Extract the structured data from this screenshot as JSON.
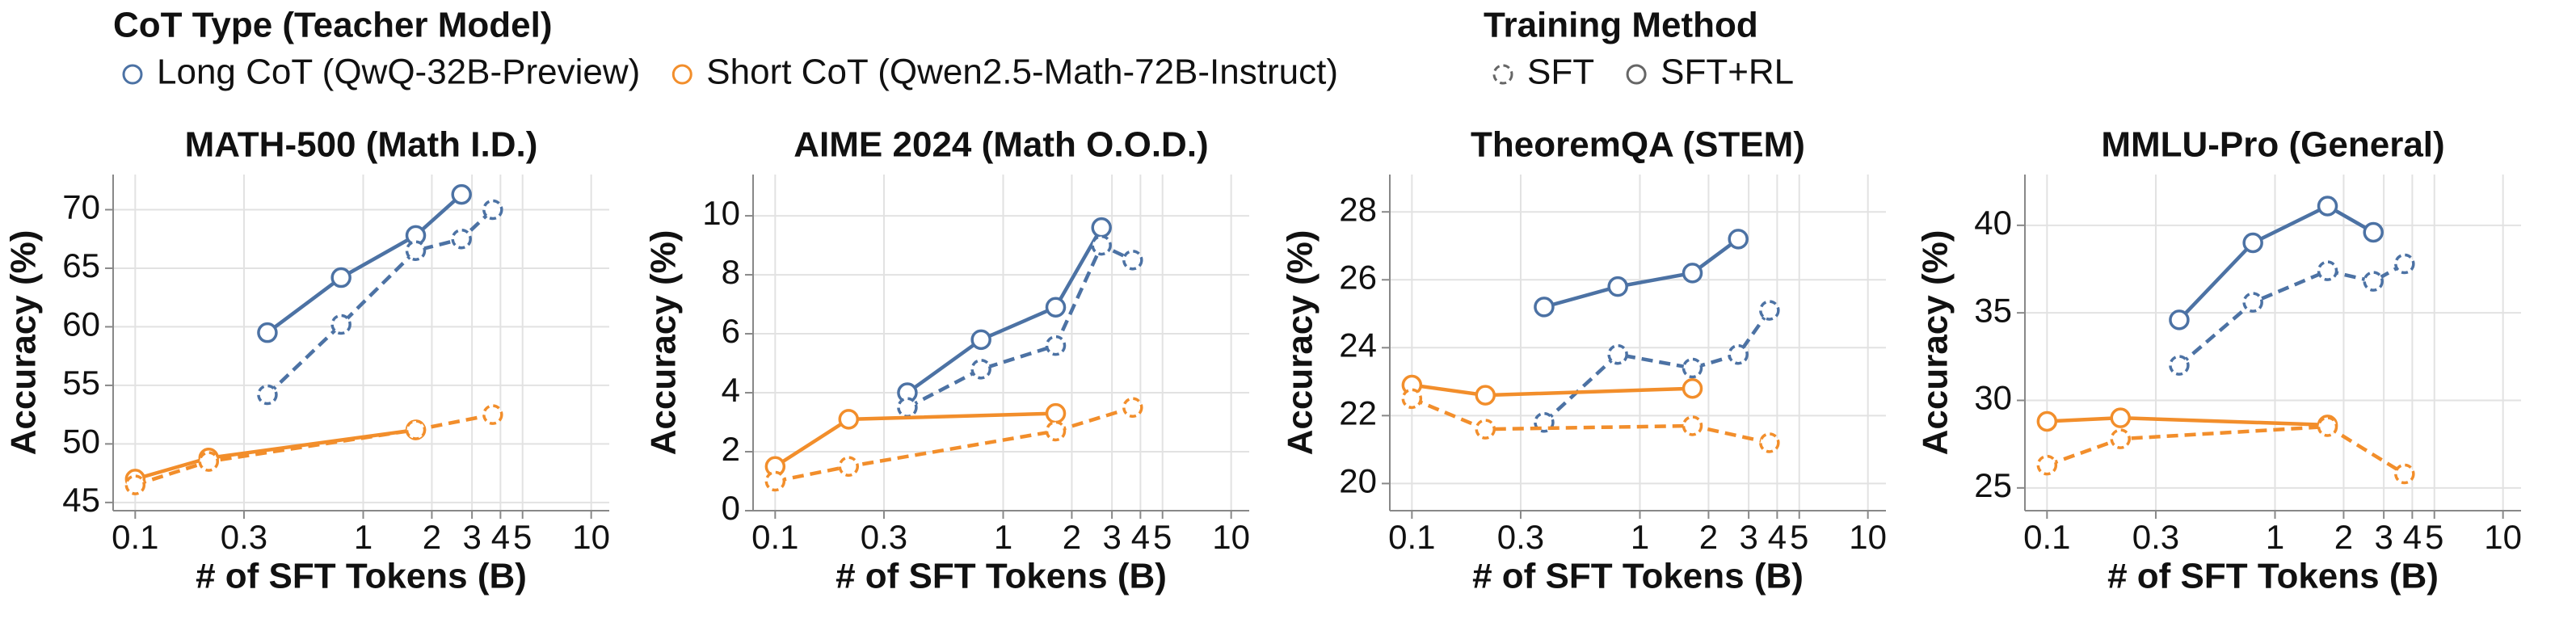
{
  "legend": {
    "groups": [
      {
        "title": "CoT Type (Teacher Model)",
        "items": [
          {
            "label": "Long CoT (QwQ-32B-Preview)",
            "color": "#4c72a4"
          },
          {
            "label": "Short CoT (Qwen2.5-Math-72B-Instruct)",
            "color": "#f28e2b"
          }
        ]
      },
      {
        "title": "Training Method",
        "items": [
          {
            "label": "SFT",
            "dash": true
          },
          {
            "label": "SFT+RL",
            "dash": false
          }
        ]
      }
    ]
  },
  "chart_data": [
    {
      "type": "line",
      "title": "MATH-500 (Math I.D.)",
      "xlabel": "# of SFT Tokens (B)",
      "ylabel": "Accuracy (%)",
      "log_x": true,
      "grid": true,
      "xlim": [
        0.08,
        12
      ],
      "xticks": [
        0.1,
        0.3,
        1,
        2,
        3,
        4,
        5,
        10
      ],
      "ylim": [
        44.3,
        73
      ],
      "yticks": [
        45,
        50,
        55,
        60,
        65,
        70
      ],
      "series": [
        {
          "cot": "Long CoT (QwQ-32B-Preview)",
          "method": "SFT+RL",
          "x": [
            0.38,
            0.8,
            1.7,
            2.7
          ],
          "values": [
            59.5,
            64.2,
            67.8,
            71.3
          ]
        },
        {
          "cot": "Long CoT (QwQ-32B-Preview)",
          "method": "SFT",
          "x": [
            0.38,
            0.8,
            1.7,
            2.7,
            3.7
          ],
          "values": [
            54.2,
            60.2,
            66.5,
            67.5,
            70.0
          ]
        },
        {
          "cot": "Short CoT (Qwen2.5-Math-72B-Instruct)",
          "method": "SFT+RL",
          "x": [
            0.1,
            0.21,
            1.7
          ],
          "values": [
            47.0,
            48.8,
            51.2
          ]
        },
        {
          "cot": "Short CoT (Qwen2.5-Math-72B-Instruct)",
          "method": "SFT",
          "x": [
            0.1,
            0.21,
            1.7,
            3.7
          ],
          "values": [
            46.5,
            48.5,
            51.2,
            52.5
          ]
        }
      ]
    },
    {
      "type": "line",
      "title": "AIME 2024 (Math O.O.D.)",
      "xlabel": "# of SFT Tokens (B)",
      "ylabel": "Accuracy (%)",
      "log_x": true,
      "grid": true,
      "xlim": [
        0.08,
        12
      ],
      "xticks": [
        0.1,
        0.3,
        1,
        2,
        3,
        4,
        5,
        10
      ],
      "ylim": [
        0,
        11.4
      ],
      "yticks": [
        0,
        2,
        4,
        6,
        8,
        10
      ],
      "series": [
        {
          "cot": "Long CoT (QwQ-32B-Preview)",
          "method": "SFT+RL",
          "x": [
            0.38,
            0.8,
            1.7,
            2.7
          ],
          "values": [
            4.0,
            5.8,
            6.9,
            9.6
          ]
        },
        {
          "cot": "Long CoT (QwQ-32B-Preview)",
          "method": "SFT",
          "x": [
            0.38,
            0.8,
            1.7,
            2.7,
            3.7
          ],
          "values": [
            3.5,
            4.8,
            5.6,
            9.0,
            8.5
          ]
        },
        {
          "cot": "Short CoT (Qwen2.5-Math-72B-Instruct)",
          "method": "SFT+RL",
          "x": [
            0.1,
            0.21,
            1.7
          ],
          "values": [
            1.5,
            3.1,
            3.3
          ]
        },
        {
          "cot": "Short CoT (Qwen2.5-Math-72B-Instruct)",
          "method": "SFT",
          "x": [
            0.1,
            0.21,
            1.7,
            3.7
          ],
          "values": [
            1.0,
            1.5,
            2.7,
            3.5
          ]
        }
      ]
    },
    {
      "type": "line",
      "title": "TheoremQA (STEM)",
      "xlabel": "# of SFT Tokens (B)",
      "ylabel": "Accuracy (%)",
      "log_x": true,
      "grid": true,
      "xlim": [
        0.08,
        12
      ],
      "xticks": [
        0.1,
        0.3,
        1,
        2,
        3,
        4,
        5,
        10
      ],
      "ylim": [
        19.2,
        29.1
      ],
      "yticks": [
        20,
        22,
        24,
        26,
        28
      ],
      "series": [
        {
          "cot": "Long CoT (QwQ-32B-Preview)",
          "method": "SFT+RL",
          "x": [
            0.38,
            0.8,
            1.7,
            2.7
          ],
          "values": [
            25.2,
            25.8,
            26.2,
            27.2
          ]
        },
        {
          "cot": "Long CoT (QwQ-32B-Preview)",
          "method": "SFT",
          "x": [
            0.38,
            0.8,
            1.7,
            2.7,
            3.7
          ],
          "values": [
            21.8,
            23.8,
            23.4,
            23.8,
            25.1
          ]
        },
        {
          "cot": "Short CoT (Qwen2.5-Math-72B-Instruct)",
          "method": "SFT+RL",
          "x": [
            0.1,
            0.21,
            1.7
          ],
          "values": [
            22.9,
            22.6,
            22.8
          ]
        },
        {
          "cot": "Short CoT (Qwen2.5-Math-72B-Instruct)",
          "method": "SFT",
          "x": [
            0.1,
            0.21,
            1.7,
            3.7
          ],
          "values": [
            22.5,
            21.6,
            21.7,
            21.2
          ]
        }
      ]
    },
    {
      "type": "line",
      "title": "MMLU-Pro (General)",
      "xlabel": "# of SFT Tokens (B)",
      "ylabel": "Accuracy (%)",
      "log_x": true,
      "grid": true,
      "xlim": [
        0.08,
        12
      ],
      "xticks": [
        0.1,
        0.3,
        1,
        2,
        3,
        4,
        5,
        10
      ],
      "ylim": [
        23.7,
        42.9
      ],
      "yticks": [
        25,
        30,
        35,
        40
      ],
      "series": [
        {
          "cot": "Long CoT (QwQ-32B-Preview)",
          "method": "SFT+RL",
          "x": [
            0.38,
            0.8,
            1.7,
            2.7
          ],
          "values": [
            34.6,
            39.0,
            41.1,
            39.6
          ]
        },
        {
          "cot": "Long CoT (QwQ-32B-Preview)",
          "method": "SFT",
          "x": [
            0.38,
            0.8,
            1.7,
            2.7,
            3.7
          ],
          "values": [
            32.0,
            35.6,
            37.4,
            36.8,
            37.8
          ]
        },
        {
          "cot": "Short CoT (Qwen2.5-Math-72B-Instruct)",
          "method": "SFT+RL",
          "x": [
            0.1,
            0.21,
            1.7
          ],
          "values": [
            28.8,
            29.0,
            28.6
          ]
        },
        {
          "cot": "Short CoT (Qwen2.5-Math-72B-Instruct)",
          "method": "SFT",
          "x": [
            0.1,
            0.21,
            1.7,
            3.7
          ],
          "values": [
            26.3,
            27.8,
            28.5,
            25.8
          ]
        }
      ]
    }
  ]
}
